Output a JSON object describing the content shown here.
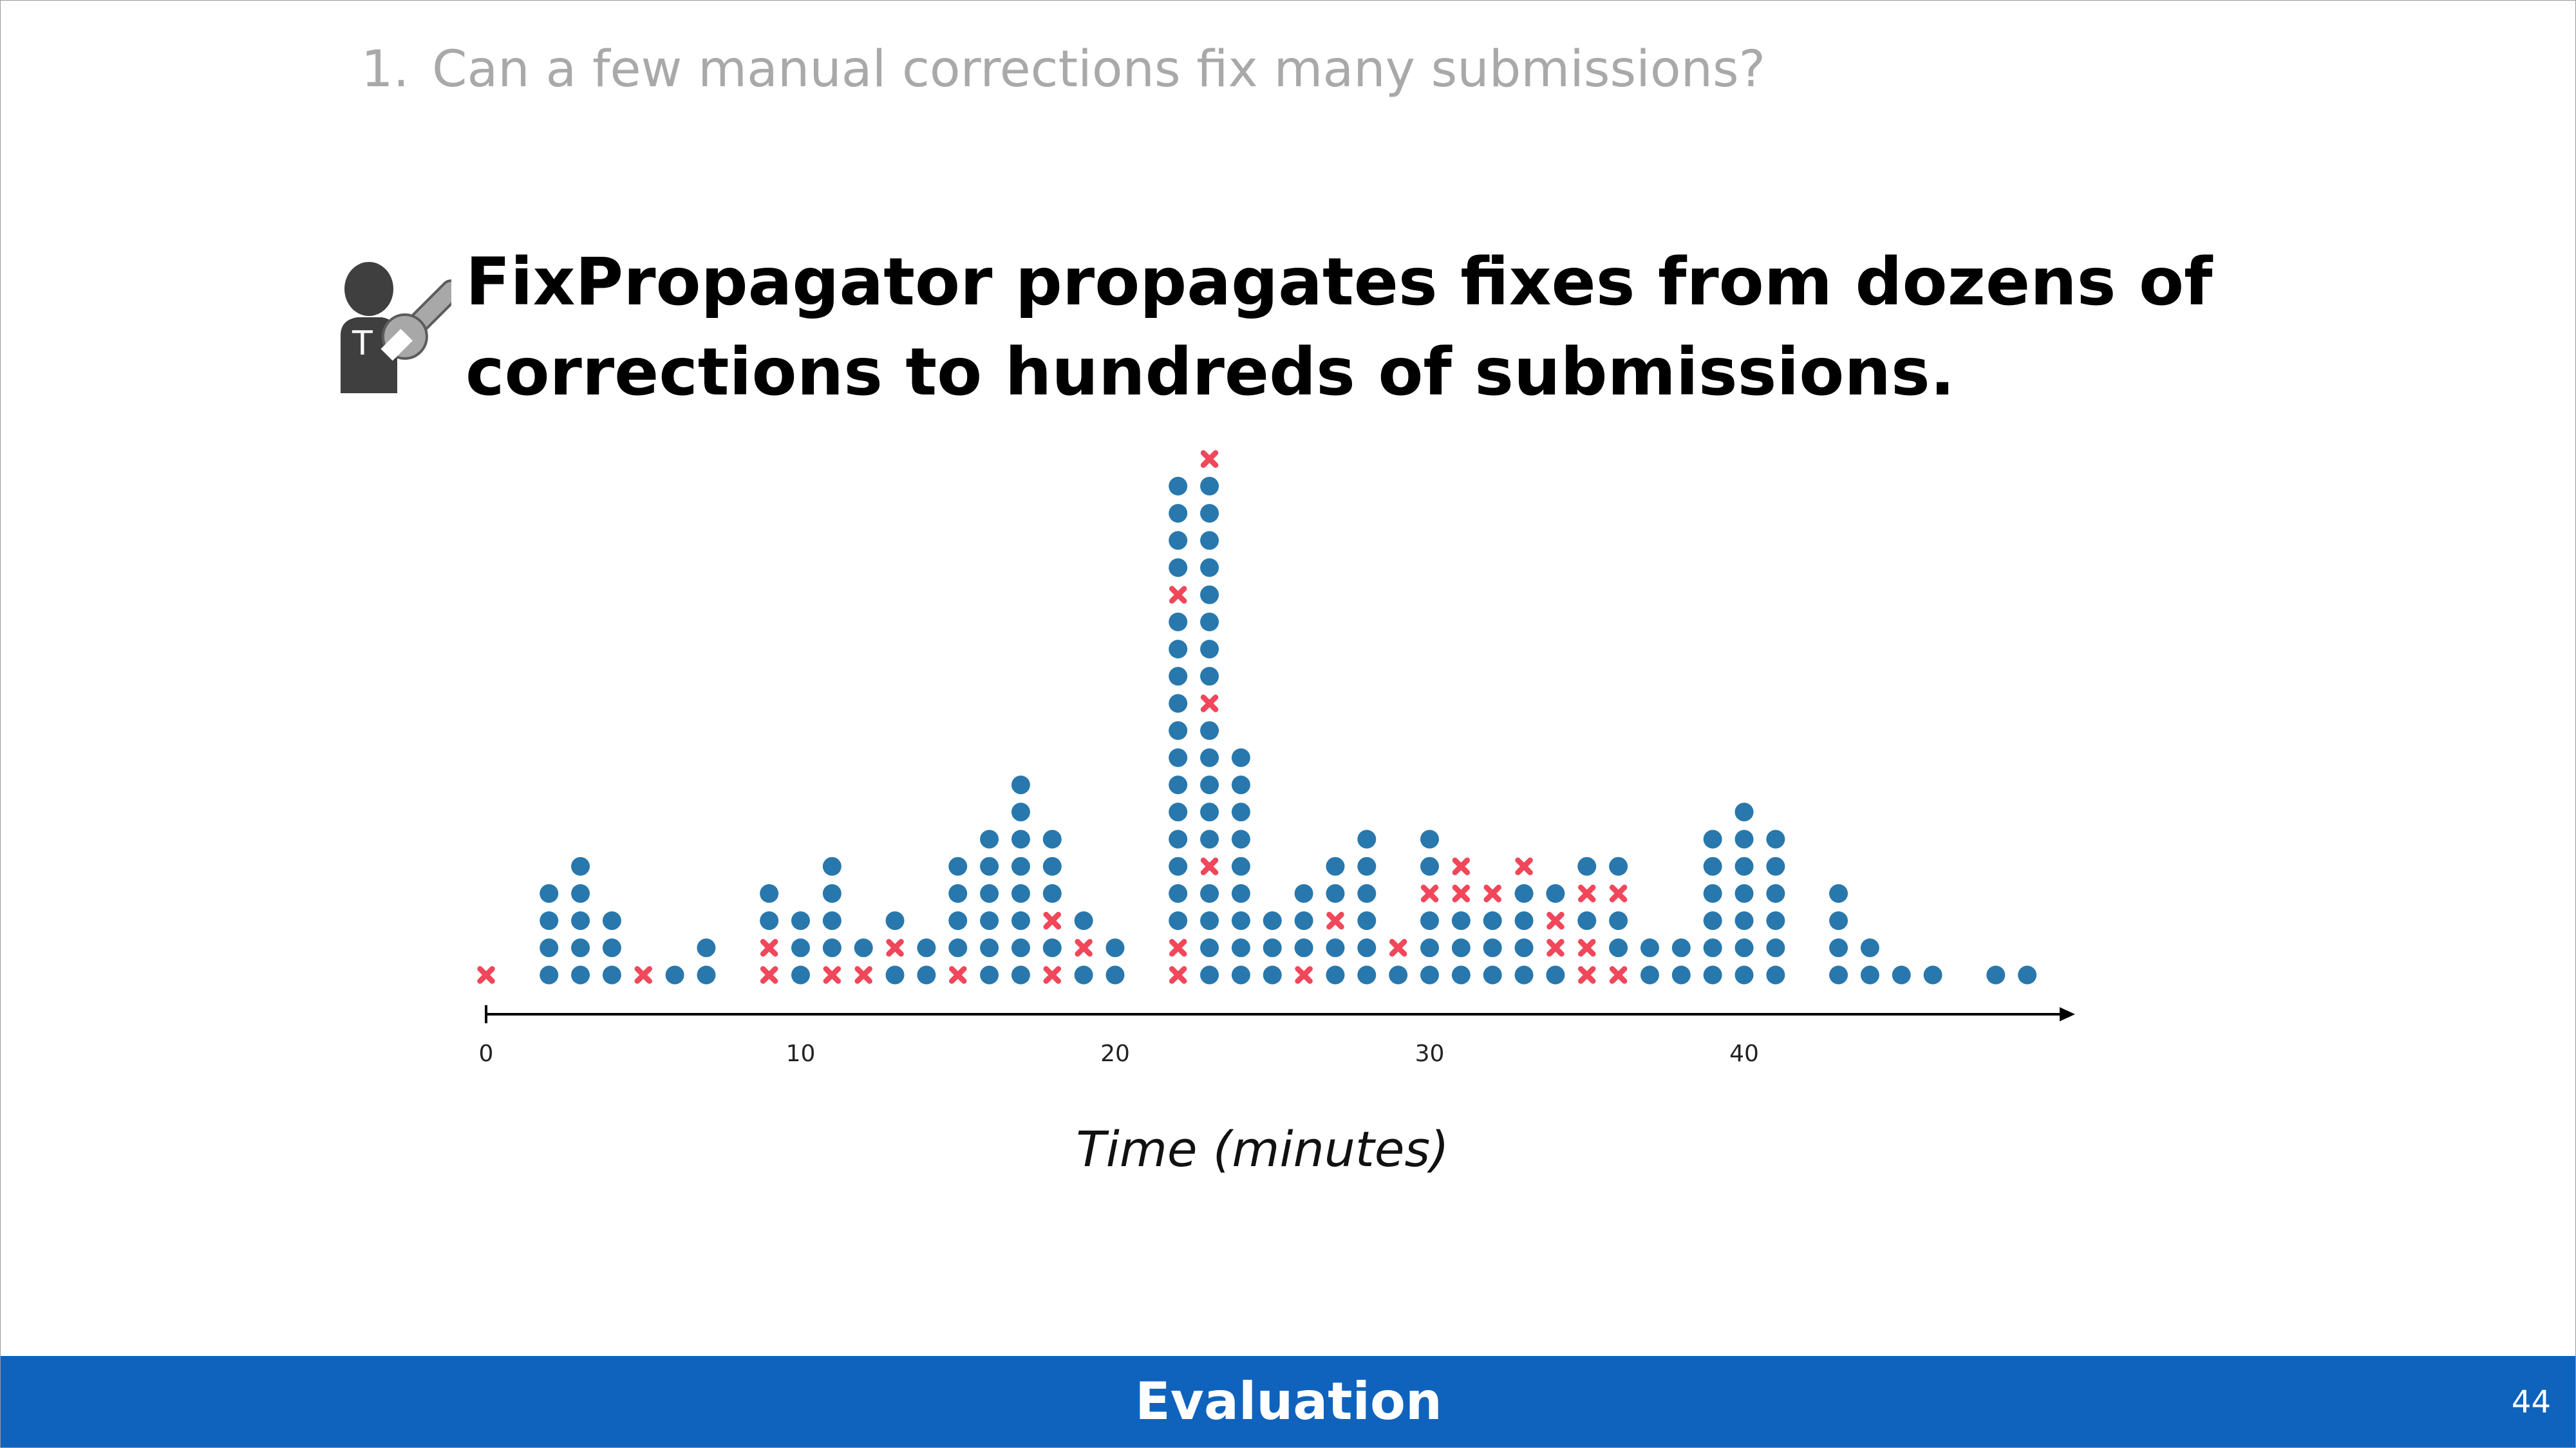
{
  "slide": {
    "question_number": "1.",
    "question_text": "Can a few manual corrections fix many submissions?",
    "headline_line1": "FixPropagator propagates fixes from dozens of",
    "headline_line2": "corrections to hundreds of submissions.",
    "icon_letter": "T",
    "footer_title": "Evaluation",
    "page_number": "44"
  },
  "colors": {
    "propagated_dot": "#2878ad",
    "manual_cross": "#f0475a",
    "footer_bar": "#0f63bd"
  },
  "icons": [
    "teacher-with-wrench-icon"
  ],
  "chart_data": {
    "type": "scatter",
    "subtype": "stacked-dot-plot",
    "xlabel": "Time (minutes)",
    "ylabel": "",
    "xlim": [
      0,
      50
    ],
    "xticks": [
      "0",
      "10",
      "20",
      "30",
      "40"
    ],
    "grid": false,
    "stacks": [
      {
        "x": 0,
        "marks": "x"
      },
      {
        "x": 2,
        "marks": "oooo"
      },
      {
        "x": 3,
        "marks": "ooooo"
      },
      {
        "x": 4,
        "marks": "ooo"
      },
      {
        "x": 5,
        "marks": "x"
      },
      {
        "x": 6,
        "marks": "o"
      },
      {
        "x": 7,
        "marks": "oo"
      },
      {
        "x": 9,
        "marks": "xxoo"
      },
      {
        "x": 10,
        "marks": "ooo"
      },
      {
        "x": 11,
        "marks": "xoooo"
      },
      {
        "x": 12,
        "marks": "xo"
      },
      {
        "x": 13,
        "marks": "oxo"
      },
      {
        "x": 14,
        "marks": "oo"
      },
      {
        "x": 15,
        "marks": "xoooo"
      },
      {
        "x": 16,
        "marks": "oooooo"
      },
      {
        "x": 17,
        "marks": "oooooooo"
      },
      {
        "x": 18,
        "marks": "xoxooo"
      },
      {
        "x": 19,
        "marks": "oxo"
      },
      {
        "x": 20,
        "marks": "oo"
      },
      {
        "x": 22,
        "marks": "xxooooooooooooxoooo"
      },
      {
        "x": 23,
        "marks": "ooooxoooooxoooooooox"
      },
      {
        "x": 24,
        "marks": "ooooooooo"
      },
      {
        "x": 25,
        "marks": "ooo"
      },
      {
        "x": 26,
        "marks": "xooo"
      },
      {
        "x": 27,
        "marks": "ooxoo"
      },
      {
        "x": 28,
        "marks": "oooooo"
      },
      {
        "x": 29,
        "marks": "ox"
      },
      {
        "x": 30,
        "marks": "oooxoo"
      },
      {
        "x": 31,
        "marks": "oooxx"
      },
      {
        "x": 32,
        "marks": "ooox"
      },
      {
        "x": 33,
        "marks": "oooox"
      },
      {
        "x": 34,
        "marks": "oxxo"
      },
      {
        "x": 35,
        "marks": "xxoxo"
      },
      {
        "x": 36,
        "marks": "xooxo"
      },
      {
        "x": 37,
        "marks": "oo"
      },
      {
        "x": 38,
        "marks": "oo"
      },
      {
        "x": 39,
        "marks": "oooooo"
      },
      {
        "x": 40,
        "marks": "ooooooo"
      },
      {
        "x": 41,
        "marks": "oooooo"
      },
      {
        "x": 43,
        "marks": "oooo"
      },
      {
        "x": 44,
        "marks": "oo"
      },
      {
        "x": 45,
        "marks": "o"
      },
      {
        "x": 46,
        "marks": "o"
      },
      {
        "x": 48,
        "marks": "o"
      },
      {
        "x": 49,
        "marks": "o"
      }
    ]
  }
}
